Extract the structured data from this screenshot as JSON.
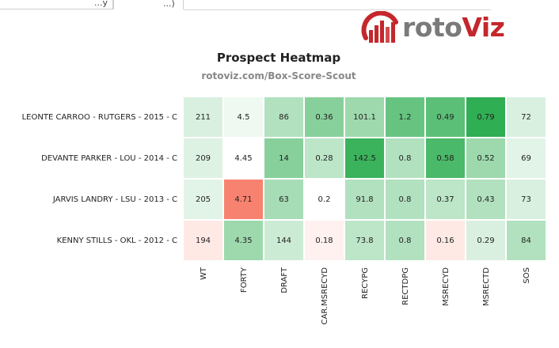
{
  "tabs": [
    {
      "label": "...y"
    },
    {
      "label": "...)"
    }
  ],
  "logo": {
    "text_part1": "roto",
    "text_part2": "Viz"
  },
  "colors": {
    "negative": "#f7826f",
    "positive": "#1aa641",
    "neutral": "#ffffff"
  },
  "header": {
    "title": "Prospect Heatmap",
    "subtitle": "rotoviz.com/Box-Score-Scout"
  },
  "chart_data": {
    "type": "heatmap",
    "title": "Prospect Heatmap",
    "subtitle": "rotoviz.com/Box-Score-Scout",
    "rows": [
      "LEONTE CARROO - RUTGERS - 2015 - C",
      "DEVANTE PARKER - LOU - 2014 - C",
      "JARVIS LANDRY - LSU - 2013 - C",
      "KENNY STILLS - OKL - 2012 - C"
    ],
    "columns": [
      "WT",
      "FORTY",
      "DRAFT",
      "CAR.MSRECYD",
      "RECYPG",
      "RECTDPG",
      "MSRECYD",
      "MSRECTD",
      "SOS"
    ],
    "values": [
      [
        211,
        4.5,
        86,
        0.36,
        101.1,
        1.2,
        0.49,
        0.79,
        72
      ],
      [
        209,
        4.45,
        14,
        0.28,
        142.5,
        0.8,
        0.58,
        0.52,
        69
      ],
      [
        205,
        4.71,
        63,
        0.2,
        91.8,
        0.8,
        0.37,
        0.43,
        73
      ],
      [
        194,
        4.35,
        144,
        0.18,
        73.8,
        0.8,
        0.16,
        0.29,
        84
      ]
    ],
    "labels": [
      [
        "211",
        "4.5",
        "86",
        "0.36",
        "101.1",
        "1.2",
        "0.49",
        "0.79",
        "72"
      ],
      [
        "209",
        "4.45",
        "14",
        "0.28",
        "142.5",
        "0.8",
        "0.58",
        "0.52",
        "69"
      ],
      [
        "205",
        "4.71",
        "63",
        "0.2",
        "91.8",
        "0.8",
        "0.37",
        "0.43",
        "73"
      ],
      [
        "194",
        "4.35",
        "144",
        "0.18",
        "73.8",
        "0.8",
        "0.16",
        "0.29",
        "84"
      ]
    ],
    "scores": [
      [
        0.12,
        0.02,
        0.3,
        0.5,
        0.4,
        0.65,
        0.7,
        0.9,
        0.12
      ],
      [
        0.1,
        0.0,
        0.5,
        0.25,
        0.85,
        0.3,
        0.78,
        0.4,
        0.08
      ],
      [
        0.08,
        -0.45,
        0.35,
        0.0,
        0.3,
        0.3,
        0.25,
        0.3,
        0.12
      ],
      [
        -0.08,
        0.4,
        0.18,
        -0.05,
        0.25,
        0.3,
        -0.08,
        0.12,
        0.3
      ]
    ],
    "colorscale": "diverging red-white-green",
    "legend": "none"
  }
}
